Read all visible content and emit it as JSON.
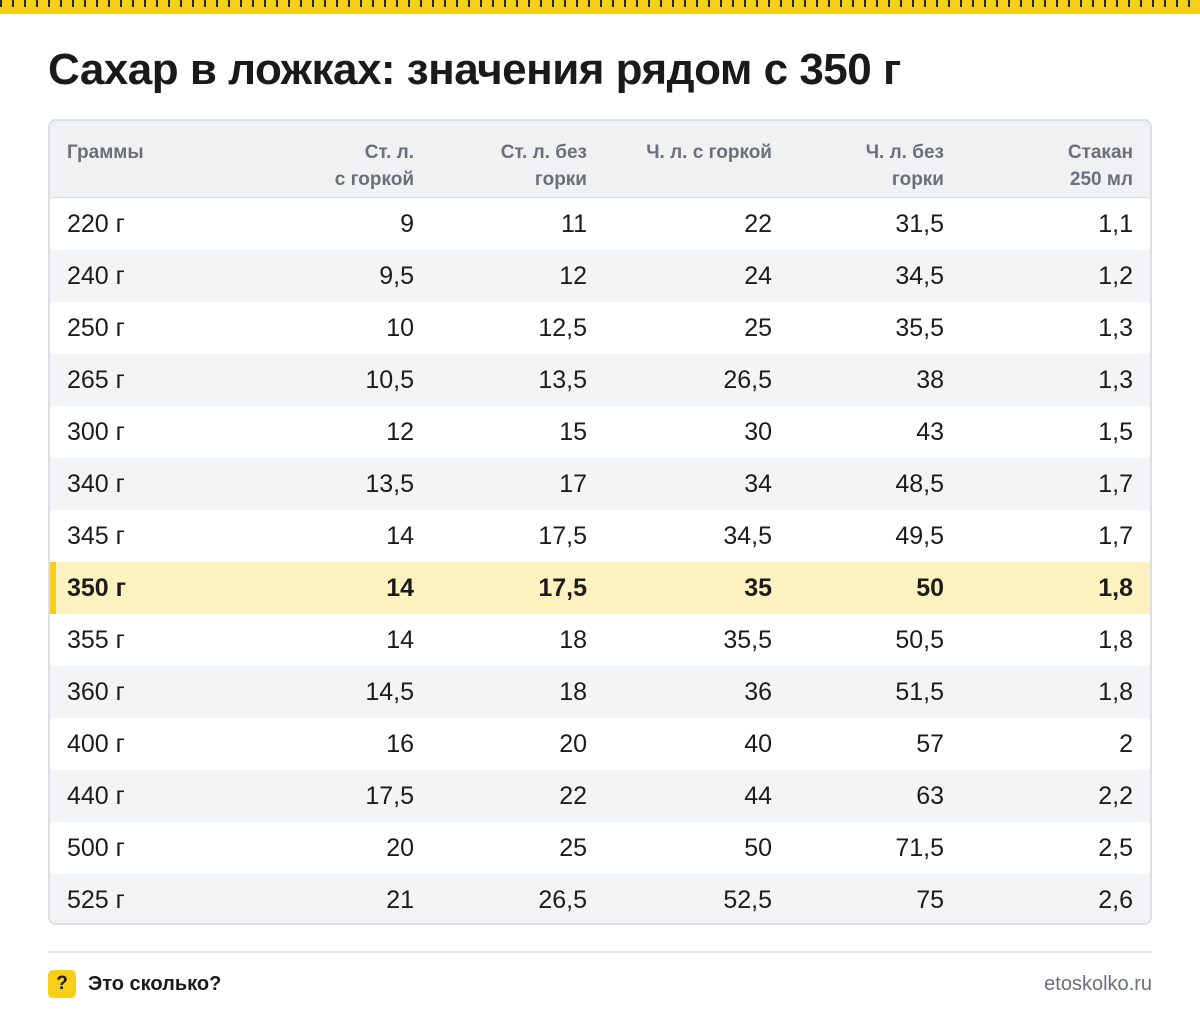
{
  "title": "Сахар в ложках: значения рядом с 350 г",
  "colors": {
    "accent": "#f7cf17",
    "highlight_row": "#fef3c0",
    "header_bg": "#f0f1f3",
    "muted_text": "#6a7079"
  },
  "table": {
    "headers": [
      [
        "Граммы"
      ],
      [
        "Ст. л.",
        "с горкой"
      ],
      [
        "Ст. л. без",
        "горки"
      ],
      [
        "Ч. л. с горкой"
      ],
      [
        "Ч. л. без",
        "горки"
      ],
      [
        "Стакан",
        "250 мл"
      ]
    ],
    "highlight_index": 7,
    "rows": [
      [
        "220 г",
        "9",
        "11",
        "22",
        "31,5",
        "1,1"
      ],
      [
        "240 г",
        "9,5",
        "12",
        "24",
        "34,5",
        "1,2"
      ],
      [
        "250 г",
        "10",
        "12,5",
        "25",
        "35,5",
        "1,3"
      ],
      [
        "265 г",
        "10,5",
        "13,5",
        "26,5",
        "38",
        "1,3"
      ],
      [
        "300 г",
        "12",
        "15",
        "30",
        "43",
        "1,5"
      ],
      [
        "340 г",
        "13,5",
        "17",
        "34",
        "48,5",
        "1,7"
      ],
      [
        "345 г",
        "14",
        "17,5",
        "34,5",
        "49,5",
        "1,7"
      ],
      [
        "350 г",
        "14",
        "17,5",
        "35",
        "50",
        "1,8"
      ],
      [
        "355 г",
        "14",
        "18",
        "35,5",
        "50,5",
        "1,8"
      ],
      [
        "360 г",
        "14,5",
        "18",
        "36",
        "51,5",
        "1,8"
      ],
      [
        "400 г",
        "16",
        "20",
        "40",
        "57",
        "2"
      ],
      [
        "440 г",
        "17,5",
        "22",
        "44",
        "63",
        "2,2"
      ],
      [
        "500 г",
        "20",
        "25",
        "50",
        "71,5",
        "2,5"
      ],
      [
        "525 г",
        "21",
        "26,5",
        "52,5",
        "75",
        "2,6"
      ]
    ]
  },
  "footer": {
    "badge": "?",
    "brand": "Это сколько?",
    "site": "etoskolko.ru"
  }
}
